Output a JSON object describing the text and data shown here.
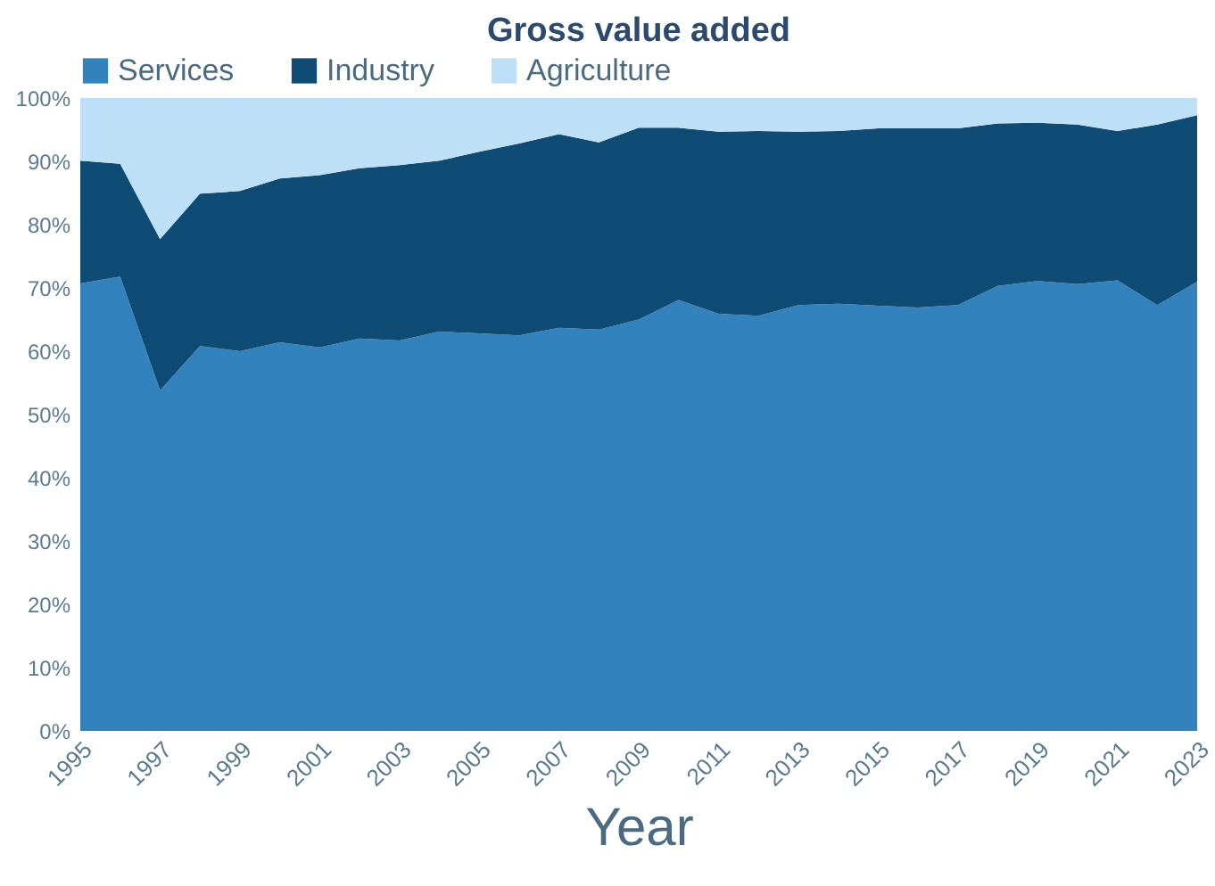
{
  "chart_data": {
    "type": "area",
    "stacked": true,
    "title": "Gross value added",
    "xlabel": "Year",
    "x": [
      1995,
      1996,
      1997,
      1998,
      1999,
      2000,
      2001,
      2002,
      2003,
      2004,
      2005,
      2006,
      2007,
      2008,
      2009,
      2010,
      2011,
      2012,
      2013,
      2014,
      2015,
      2016,
      2017,
      2018,
      2019,
      2020,
      2021,
      2022,
      2023
    ],
    "series": [
      {
        "name": "Services",
        "color": "#3182bd",
        "values": [
          70.7,
          71.8,
          53.8,
          60.8,
          60.0,
          61.4,
          60.6,
          62.0,
          61.7,
          63.1,
          62.8,
          62.5,
          63.7,
          63.4,
          65.0,
          68.1,
          65.9,
          65.6,
          67.3,
          67.5,
          67.2,
          66.9,
          67.3,
          70.3,
          71.1,
          70.6,
          71.2,
          67.3,
          71.0
        ]
      },
      {
        "name": "Industry",
        "color": "#0f4c75",
        "values": [
          19.4,
          17.8,
          23.9,
          24.1,
          25.3,
          25.9,
          27.2,
          26.9,
          27.7,
          27.0,
          28.7,
          30.3,
          30.6,
          29.6,
          30.3,
          27.2,
          28.8,
          29.2,
          27.4,
          27.3,
          28.0,
          28.3,
          27.9,
          25.7,
          25.0,
          25.2,
          23.6,
          28.5,
          26.3
        ]
      },
      {
        "name": "Agriculture",
        "color": "#bde0f7",
        "values": [
          9.9,
          10.4,
          22.3,
          15.1,
          14.7,
          12.7,
          12.2,
          11.1,
          10.6,
          9.9,
          8.5,
          7.2,
          5.7,
          7.0,
          4.7,
          4.7,
          5.3,
          5.2,
          5.3,
          5.2,
          4.8,
          4.8,
          4.8,
          4.0,
          3.9,
          4.2,
          5.2,
          4.2,
          2.7
        ]
      }
    ],
    "xlim": [
      1995,
      2023
    ],
    "xticks": [
      1995,
      1997,
      1999,
      2001,
      2003,
      2005,
      2007,
      2009,
      2011,
      2013,
      2015,
      2017,
      2019,
      2021,
      2023
    ],
    "ylim": [
      0,
      100
    ],
    "yticks": [
      {
        "value": 0,
        "label": "0%"
      },
      {
        "value": 10,
        "label": "10%"
      },
      {
        "value": 20,
        "label": "20%"
      },
      {
        "value": 30,
        "label": "30%"
      },
      {
        "value": 40,
        "label": "40%"
      },
      {
        "value": 50,
        "label": "50%"
      },
      {
        "value": 60,
        "label": "60%"
      },
      {
        "value": 70,
        "label": "70%"
      },
      {
        "value": 80,
        "label": "80%"
      },
      {
        "value": 90,
        "label": "90%"
      },
      {
        "value": 100,
        "label": "100%"
      }
    ],
    "grid": false,
    "legend": "top"
  }
}
